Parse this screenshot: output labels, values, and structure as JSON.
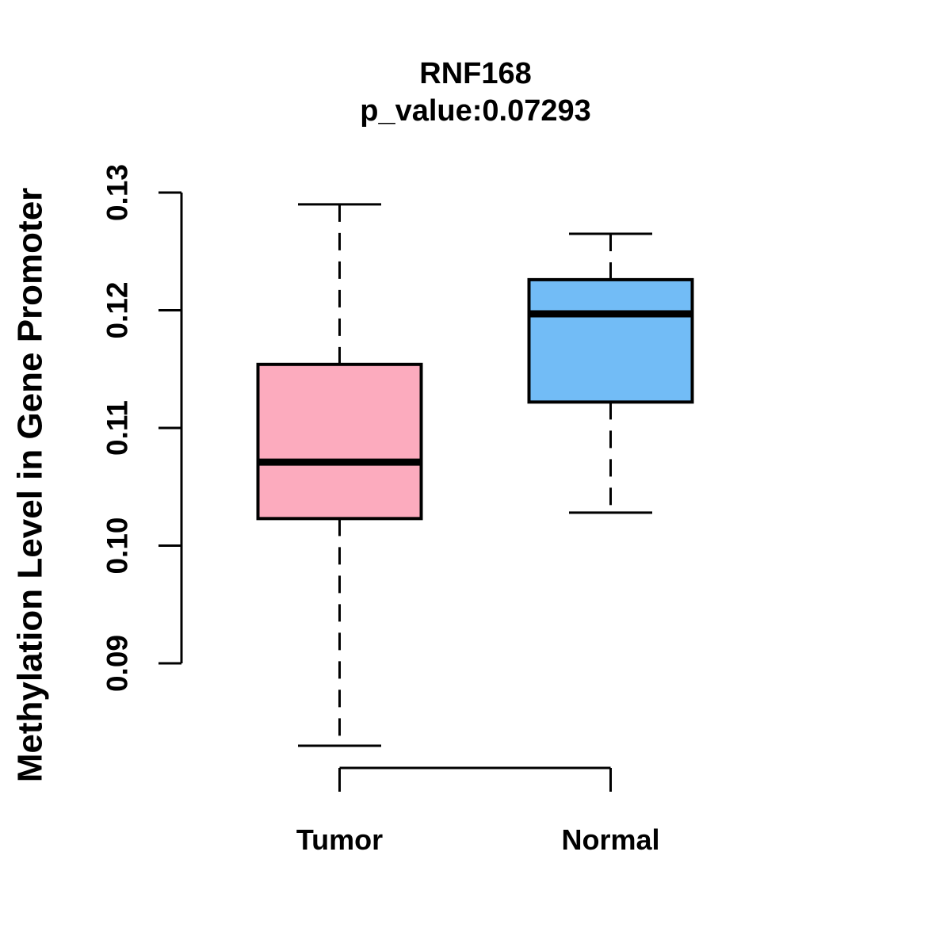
{
  "chart_data": {
    "type": "boxplot",
    "title": "RNF168",
    "subtitle": "p_value:0.07293",
    "xlabel": "",
    "ylabel": "Methylation Level in Gene Promoter",
    "ytick_labels": [
      "0.09",
      "0.10",
      "0.11",
      "0.12",
      "0.13"
    ],
    "ylim": [
      0.083,
      0.13
    ],
    "grid": false,
    "legend": "none",
    "background_color": "#FFFFFF",
    "box_border_color": "#000000",
    "median_color": "#000000",
    "whisker_style": "dashed",
    "categories": [
      "Tumor",
      "Normal"
    ],
    "series": [
      {
        "name": "Tumor",
        "fill_color": "#FCABBE",
        "lower_whisker": 0.083,
        "q1": 0.1023,
        "median": 0.1071,
        "q3": 0.1154,
        "upper_whisker": 0.129
      },
      {
        "name": "Normal",
        "fill_color": "#72BCF6",
        "lower_whisker": 0.1028,
        "q1": 0.1122,
        "median": 0.1197,
        "q3": 0.1226,
        "upper_whisker": 0.1265
      }
    ]
  }
}
